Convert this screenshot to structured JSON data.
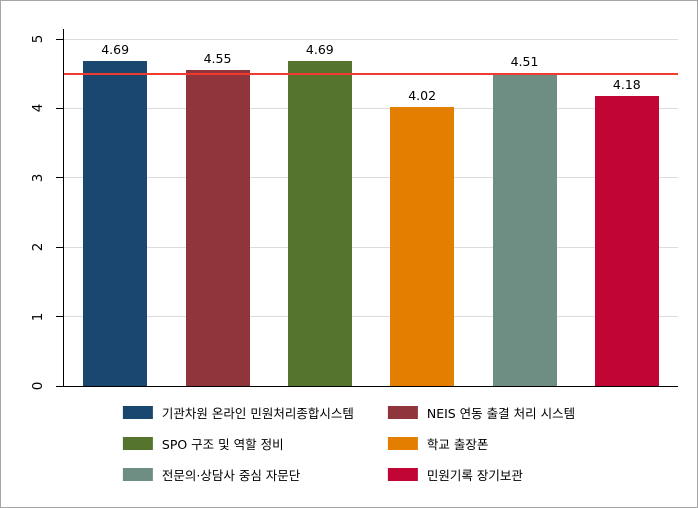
{
  "chart_data": {
    "type": "bar",
    "title": "",
    "xlabel": "",
    "ylabel": "",
    "ylim": [
      0,
      5
    ],
    "grid": true,
    "categories": [
      "기관차원 온라인 민원처리종합시스템",
      "NEIS 연동 출결 처리 시스템",
      "SPO 구조 및 역할 정비",
      "학교 출장폰",
      "전문의·상담사 중심 자문단",
      "민원기록 장기보관"
    ],
    "values": [
      4.69,
      4.55,
      4.69,
      4.02,
      4.51,
      4.18
    ],
    "value_labels": [
      "4.69",
      "4.55",
      "4.69",
      "4.02",
      "4.51",
      "4.18"
    ],
    "bar_colors": [
      "#1a476f",
      "#90353b",
      "#55752f",
      "#e37e00",
      "#6e8e84",
      "#c10534"
    ],
    "ytick_values": [
      0,
      1,
      2,
      3,
      4,
      5
    ],
    "ytick_labels": [
      "0",
      "1",
      "2",
      "3",
      "4",
      "5"
    ],
    "gridline_values": [
      1,
      2,
      3,
      4,
      5
    ],
    "reference_line": {
      "value": 4.5,
      "color": "#f23a2e"
    },
    "legend": {
      "position": "bottom",
      "columns": 2
    }
  },
  "colors": {
    "background": "#ffffff",
    "outer_border": "#a6a6a6",
    "axis": "#000000",
    "gridline": "#dcdcdc",
    "text": "#000000"
  }
}
